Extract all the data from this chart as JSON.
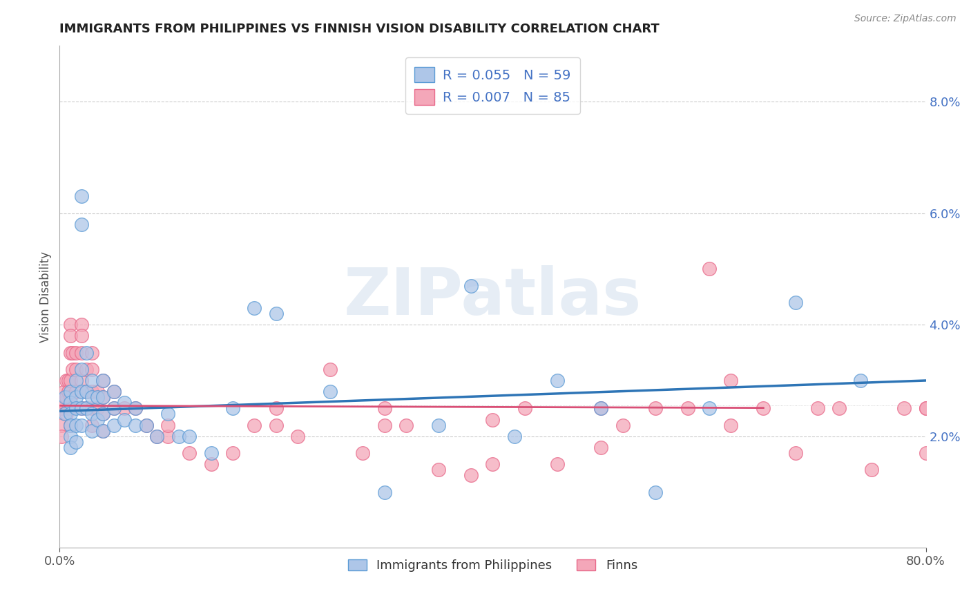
{
  "title": "IMMIGRANTS FROM PHILIPPINES VS FINNISH VISION DISABILITY CORRELATION CHART",
  "source": "Source: ZipAtlas.com",
  "ylabel": "Vision Disability",
  "xlim": [
    0.0,
    0.8
  ],
  "ylim": [
    0.0,
    0.09
  ],
  "ytick_vals": [
    0.02,
    0.04,
    0.06,
    0.08
  ],
  "yticklabels_right": [
    "2.0%",
    "4.0%",
    "6.0%",
    "8.0%"
  ],
  "legend_label1": "R = 0.055   N = 59",
  "legend_label2": "R = 0.007   N = 85",
  "legend_label_bottom1": "Immigrants from Philippines",
  "legend_label_bottom2": "Finns",
  "color_blue": "#aec6e8",
  "color_pink": "#f4a7b9",
  "color_blue_edge": "#5b9bd5",
  "color_pink_edge": "#e8698a",
  "color_trend_blue": "#2e75b6",
  "color_trend_pink": "#d94f76",
  "trend_blue_y0": 0.0245,
  "trend_blue_y1": 0.03,
  "trend_pink_y0": 0.0255,
  "trend_pink_y1": 0.025,
  "dotted_line_y": 0.0255,
  "blue_x": [
    0.005,
    0.005,
    0.01,
    0.01,
    0.01,
    0.01,
    0.01,
    0.01,
    0.015,
    0.015,
    0.015,
    0.015,
    0.015,
    0.02,
    0.02,
    0.02,
    0.02,
    0.02,
    0.02,
    0.025,
    0.025,
    0.025,
    0.03,
    0.03,
    0.03,
    0.03,
    0.035,
    0.035,
    0.04,
    0.04,
    0.04,
    0.04,
    0.05,
    0.05,
    0.05,
    0.06,
    0.06,
    0.07,
    0.07,
    0.08,
    0.09,
    0.1,
    0.11,
    0.12,
    0.14,
    0.16,
    0.18,
    0.2,
    0.25,
    0.3,
    0.35,
    0.38,
    0.42,
    0.46,
    0.5,
    0.55,
    0.6,
    0.68,
    0.74
  ],
  "blue_y": [
    0.027,
    0.024,
    0.028,
    0.026,
    0.024,
    0.022,
    0.02,
    0.018,
    0.03,
    0.027,
    0.025,
    0.022,
    0.019,
    0.063,
    0.058,
    0.032,
    0.028,
    0.025,
    0.022,
    0.035,
    0.028,
    0.025,
    0.03,
    0.027,
    0.024,
    0.021,
    0.027,
    0.023,
    0.03,
    0.027,
    0.024,
    0.021,
    0.028,
    0.025,
    0.022,
    0.026,
    0.023,
    0.025,
    0.022,
    0.022,
    0.02,
    0.024,
    0.02,
    0.02,
    0.017,
    0.025,
    0.043,
    0.042,
    0.028,
    0.01,
    0.022,
    0.047,
    0.02,
    0.03,
    0.025,
    0.01,
    0.025,
    0.044,
    0.03
  ],
  "pink_x": [
    0.002,
    0.002,
    0.002,
    0.004,
    0.004,
    0.006,
    0.006,
    0.006,
    0.008,
    0.008,
    0.008,
    0.01,
    0.01,
    0.01,
    0.01,
    0.01,
    0.01,
    0.01,
    0.012,
    0.012,
    0.015,
    0.015,
    0.015,
    0.02,
    0.02,
    0.02,
    0.02,
    0.02,
    0.025,
    0.025,
    0.025,
    0.03,
    0.03,
    0.03,
    0.03,
    0.03,
    0.035,
    0.035,
    0.04,
    0.04,
    0.04,
    0.04,
    0.05,
    0.05,
    0.06,
    0.07,
    0.08,
    0.09,
    0.1,
    0.12,
    0.14,
    0.16,
    0.18,
    0.2,
    0.22,
    0.25,
    0.28,
    0.3,
    0.32,
    0.35,
    0.38,
    0.4,
    0.43,
    0.46,
    0.5,
    0.52,
    0.55,
    0.58,
    0.6,
    0.62,
    0.65,
    0.68,
    0.7,
    0.72,
    0.75,
    0.78,
    0.8,
    0.8,
    0.8,
    0.62,
    0.5,
    0.4,
    0.3,
    0.2,
    0.1
  ],
  "pink_y": [
    0.025,
    0.022,
    0.02,
    0.028,
    0.026,
    0.03,
    0.027,
    0.024,
    0.03,
    0.028,
    0.025,
    0.04,
    0.038,
    0.035,
    0.03,
    0.027,
    0.025,
    0.022,
    0.035,
    0.032,
    0.035,
    0.032,
    0.028,
    0.04,
    0.038,
    0.035,
    0.03,
    0.025,
    0.032,
    0.028,
    0.025,
    0.035,
    0.032,
    0.028,
    0.025,
    0.022,
    0.028,
    0.025,
    0.03,
    0.027,
    0.024,
    0.021,
    0.028,
    0.025,
    0.025,
    0.025,
    0.022,
    0.02,
    0.02,
    0.017,
    0.015,
    0.017,
    0.022,
    0.022,
    0.02,
    0.032,
    0.017,
    0.022,
    0.022,
    0.014,
    0.013,
    0.023,
    0.025,
    0.015,
    0.025,
    0.022,
    0.025,
    0.025,
    0.05,
    0.022,
    0.025,
    0.017,
    0.025,
    0.025,
    0.014,
    0.025,
    0.025,
    0.017,
    0.025,
    0.03,
    0.018,
    0.015,
    0.025,
    0.025,
    0.022
  ]
}
